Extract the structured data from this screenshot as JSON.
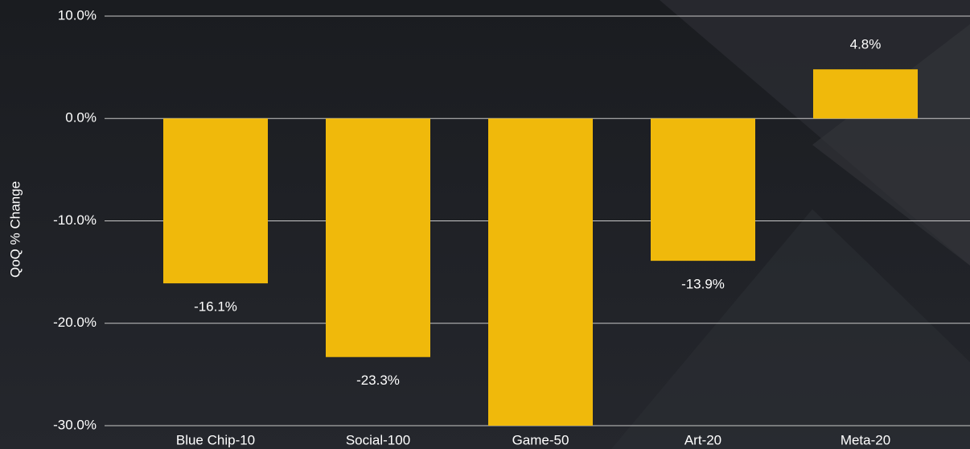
{
  "chart_data": {
    "type": "bar",
    "y_label": "QoQ % Change",
    "categories": [
      "Blue Chip-10",
      "Social-100",
      "Game-50",
      "Art-20",
      "Meta-20"
    ],
    "values": [
      -16.1,
      -23.3,
      -30,
      -13.9,
      4.8
    ],
    "value_labels": [
      "-16.1%",
      "-23.3%",
      null,
      "-13.9%",
      "4.8%"
    ],
    "color": "#f0b90b",
    "ylim": [
      -30,
      10
    ],
    "yticks": [
      {
        "value": 10,
        "label": "10.0%"
      },
      {
        "value": 0,
        "label": "0.0%"
      },
      {
        "value": -10,
        "label": "-10.0%"
      },
      {
        "value": -20,
        "label": "-20.0%"
      },
      {
        "value": -30,
        "label": "-30.0%"
      }
    ],
    "grid": true
  }
}
